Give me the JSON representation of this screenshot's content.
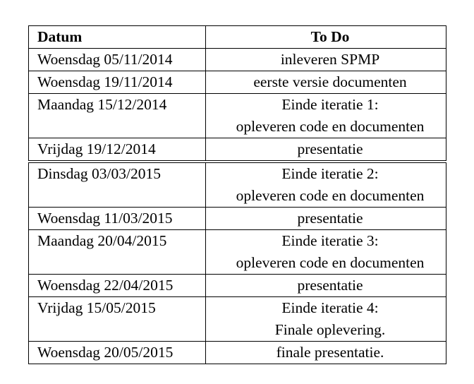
{
  "table": {
    "headers": {
      "date": "Datum",
      "todo": "To Do"
    },
    "rows": [
      {
        "date": "Woensdag 05/11/2014",
        "todo": [
          "inleveren SPMP"
        ]
      },
      {
        "date": "Woensdag 19/11/2014",
        "todo": [
          "eerste versie documenten"
        ]
      },
      {
        "date": "Maandag 15/12/2014",
        "todo": [
          "Einde iteratie 1:",
          "opleveren code en documenten"
        ]
      },
      {
        "date": "Vrijdag 19/12/2014",
        "todo": [
          "presentatie"
        ]
      },
      {
        "date": "Dinsdag 03/03/2015",
        "todo": [
          "Einde iteratie 2:",
          "opleveren code en documenten"
        ]
      },
      {
        "date": "Woensdag 11/03/2015",
        "todo": [
          "presentatie"
        ]
      },
      {
        "date": "Maandag 20/04/2015",
        "todo": [
          "Einde iteratie 3:",
          "opleveren code en documenten"
        ]
      },
      {
        "date": "Woensdag 22/04/2015",
        "todo": [
          "presentatie"
        ]
      },
      {
        "date": "Vrijdag 15/05/2015",
        "todo": [
          "Einde iteratie 4:",
          "Finale oplevering."
        ]
      },
      {
        "date": "Woensdag 20/05/2015",
        "todo": [
          "finale presentatie."
        ]
      }
    ]
  }
}
